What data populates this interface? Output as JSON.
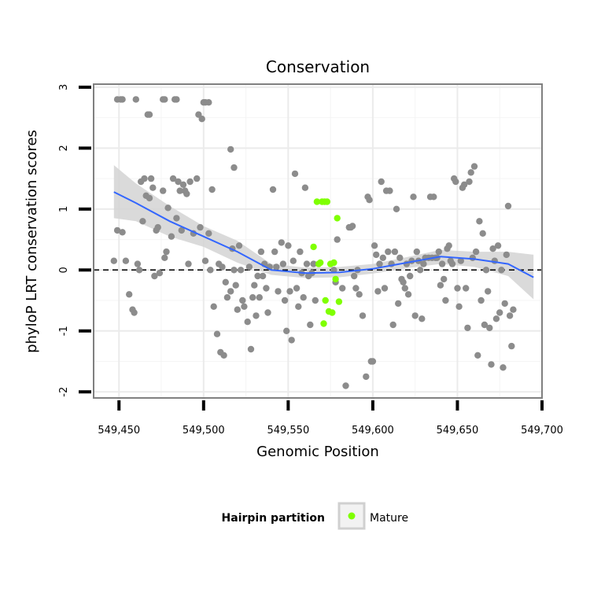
{
  "chart_data": {
    "type": "scatter",
    "title": "Conservation",
    "xlabel": "Genomic Position",
    "ylabel": "phyloP LRT conservation scores",
    "xlim": [
      549435,
      549700
    ],
    "ylim": [
      -2.1,
      3.05
    ],
    "x_ticks": [
      549450,
      549500,
      549550,
      549600,
      549650,
      549700
    ],
    "x_tick_labels": [
      "549,450",
      "549,500",
      "549,550",
      "549,600",
      "549,650",
      "549,700"
    ],
    "y_ticks": [
      -2,
      -1,
      0,
      1,
      2,
      3
    ],
    "y_tick_labels": [
      "-2",
      "-1",
      "0",
      "1",
      "2",
      "3"
    ],
    "reference_line": {
      "y": 0,
      "style": "dashed"
    },
    "grid": true,
    "legend": {
      "title": "Hairpin partition",
      "position": "bottom",
      "entries": [
        {
          "label": "Mature",
          "color": "#7fff00"
        }
      ]
    },
    "colors": {
      "other": "#8c8c8c",
      "mature": "#7fff00",
      "smooth": "#3366ff",
      "ribbon": "#d4d4d4"
    },
    "series": [
      {
        "group": "other",
        "points": [
          [
            549449,
            2.8
          ],
          [
            549451,
            2.8
          ],
          [
            549452,
            2.8
          ],
          [
            549460,
            2.8
          ],
          [
            549467,
            2.55
          ],
          [
            549468,
            2.55
          ],
          [
            549476,
            2.8
          ],
          [
            549477,
            2.8
          ],
          [
            549483,
            2.8
          ],
          [
            549484,
            2.8
          ],
          [
            549497,
            2.55
          ],
          [
            549499,
            2.48
          ],
          [
            549500,
            2.75
          ],
          [
            549501,
            2.75
          ],
          [
            549503,
            2.75
          ],
          [
            549516,
            1.98
          ],
          [
            549518,
            1.68
          ],
          [
            549554,
            1.58
          ],
          [
            549560,
            1.35
          ],
          [
            549449,
            0.65
          ],
          [
            549452,
            0.62
          ],
          [
            549454,
            0.15
          ],
          [
            549447,
            0.15
          ],
          [
            549456,
            -0.4
          ],
          [
            549458,
            -0.65
          ],
          [
            549459,
            -0.7
          ],
          [
            549461,
            0.1
          ],
          [
            549462,
            0.0
          ],
          [
            549463,
            1.45
          ],
          [
            549465,
            1.5
          ],
          [
            549464,
            0.8
          ],
          [
            549466,
            1.22
          ],
          [
            549468,
            1.18
          ],
          [
            549469,
            1.5
          ],
          [
            549470,
            1.35
          ],
          [
            549471,
            -0.1
          ],
          [
            549472,
            0.65
          ],
          [
            549473,
            0.7
          ],
          [
            549474,
            -0.05
          ],
          [
            549476,
            1.3
          ],
          [
            549477,
            0.2
          ],
          [
            549478,
            0.3
          ],
          [
            549479,
            1.02
          ],
          [
            549481,
            0.55
          ],
          [
            549482,
            1.5
          ],
          [
            549484,
            0.85
          ],
          [
            549485,
            1.45
          ],
          [
            549486,
            1.3
          ],
          [
            549487,
            0.65
          ],
          [
            549488,
            1.4
          ],
          [
            549489,
            1.3
          ],
          [
            549490,
            1.25
          ],
          [
            549491,
            0.1
          ],
          [
            549492,
            1.45
          ],
          [
            549494,
            0.6
          ],
          [
            549496,
            1.5
          ],
          [
            549498,
            0.7
          ],
          [
            549501,
            0.15
          ],
          [
            549503,
            0.6
          ],
          [
            549504,
            0.0
          ],
          [
            549505,
            1.32
          ],
          [
            549506,
            -0.6
          ],
          [
            549508,
            -1.05
          ],
          [
            549509,
            0.1
          ],
          [
            549510,
            -1.35
          ],
          [
            549511,
            0.05
          ],
          [
            549512,
            -1.4
          ],
          [
            549513,
            -0.2
          ],
          [
            549514,
            -0.45
          ],
          [
            549516,
            -0.35
          ],
          [
            549517,
            0.35
          ],
          [
            549518,
            0.0
          ],
          [
            549519,
            -0.25
          ],
          [
            549520,
            -0.65
          ],
          [
            549521,
            0.4
          ],
          [
            549522,
            0.0
          ],
          [
            549523,
            -0.5
          ],
          [
            549524,
            -0.6
          ],
          [
            549526,
            -0.85
          ],
          [
            549527,
            0.05
          ],
          [
            549528,
            -1.3
          ],
          [
            549529,
            -0.45
          ],
          [
            549530,
            -0.25
          ],
          [
            549531,
            -0.75
          ],
          [
            549532,
            -0.1
          ],
          [
            549533,
            -0.45
          ],
          [
            549534,
            0.3
          ],
          [
            549535,
            -0.1
          ],
          [
            549536,
            0.1
          ],
          [
            549537,
            -0.3
          ],
          [
            549538,
            -0.7
          ],
          [
            549539,
            0.05
          ],
          [
            549541,
            1.32
          ],
          [
            549542,
            0.3
          ],
          [
            549543,
            0.05
          ],
          [
            549544,
            -0.35
          ],
          [
            549546,
            0.45
          ],
          [
            549547,
            0.1
          ],
          [
            549548,
            -0.5
          ],
          [
            549549,
            -1.0
          ],
          [
            549550,
            0.4
          ],
          [
            549551,
            -0.35
          ],
          [
            549552,
            -1.15
          ],
          [
            549553,
            0.15
          ],
          [
            549555,
            -0.3
          ],
          [
            549556,
            -0.6
          ],
          [
            549557,
            0.3
          ],
          [
            549558,
            -0.05
          ],
          [
            549559,
            -0.45
          ],
          [
            549561,
            0.1
          ],
          [
            549562,
            -0.1
          ],
          [
            549563,
            -0.9
          ],
          [
            549564,
            -0.05
          ],
          [
            549565,
            0.1
          ],
          [
            549566,
            -0.5
          ],
          [
            549577,
            0.0
          ],
          [
            549578,
            -0.2
          ],
          [
            549579,
            0.5
          ],
          [
            549582,
            -0.3
          ],
          [
            549584,
            -1.9
          ],
          [
            549586,
            0.7
          ],
          [
            549587,
            0.7
          ],
          [
            549588,
            0.72
          ],
          [
            549589,
            -0.1
          ],
          [
            549590,
            -0.3
          ],
          [
            549591,
            0.0
          ],
          [
            549592,
            -0.4
          ],
          [
            549594,
            -0.75
          ],
          [
            549596,
            -1.75
          ],
          [
            549597,
            1.2
          ],
          [
            549598,
            1.15
          ],
          [
            549599,
            -1.5
          ],
          [
            549600,
            -1.5
          ],
          [
            549601,
            0.4
          ],
          [
            549602,
            0.25
          ],
          [
            549603,
            -0.35
          ],
          [
            549604,
            0.1
          ],
          [
            549605,
            1.45
          ],
          [
            549606,
            0.2
          ],
          [
            549607,
            -0.3
          ],
          [
            549608,
            1.3
          ],
          [
            549609,
            0.3
          ],
          [
            549610,
            1.3
          ],
          [
            549611,
            0.1
          ],
          [
            549612,
            -0.9
          ],
          [
            549613,
            0.3
          ],
          [
            549614,
            1.0
          ],
          [
            549615,
            -0.55
          ],
          [
            549616,
            0.2
          ],
          [
            549617,
            -0.15
          ],
          [
            549618,
            -0.2
          ],
          [
            549619,
            -0.3
          ],
          [
            549620,
            0.1
          ],
          [
            549621,
            -0.4
          ],
          [
            549622,
            -0.1
          ],
          [
            549623,
            0.15
          ],
          [
            549624,
            1.2
          ],
          [
            549625,
            -0.75
          ],
          [
            549626,
            0.3
          ],
          [
            549627,
            0.15
          ],
          [
            549628,
            0.0
          ],
          [
            549629,
            -0.8
          ],
          [
            549630,
            0.1
          ],
          [
            549631,
            0.2
          ],
          [
            549633,
            0.2
          ],
          [
            549634,
            1.2
          ],
          [
            549635,
            0.2
          ],
          [
            549636,
            1.2
          ],
          [
            549637,
            0.2
          ],
          [
            549638,
            0.2
          ],
          [
            549639,
            0.3
          ],
          [
            549640,
            -0.25
          ],
          [
            549641,
            0.1
          ],
          [
            549642,
            -0.15
          ],
          [
            549643,
            -0.5
          ],
          [
            549644,
            0.35
          ],
          [
            549645,
            0.4
          ],
          [
            549646,
            0.15
          ],
          [
            549647,
            0.1
          ],
          [
            549648,
            1.5
          ],
          [
            549649,
            1.45
          ],
          [
            549650,
            -0.3
          ],
          [
            549651,
            -0.6
          ],
          [
            549652,
            0.15
          ],
          [
            549653,
            1.35
          ],
          [
            549654,
            1.4
          ],
          [
            549655,
            -0.3
          ],
          [
            549656,
            -0.95
          ],
          [
            549657,
            1.45
          ],
          [
            549658,
            1.6
          ],
          [
            549659,
            0.2
          ],
          [
            549660,
            1.7
          ],
          [
            549661,
            0.3
          ],
          [
            549662,
            -1.4
          ],
          [
            549663,
            0.8
          ],
          [
            549664,
            -0.5
          ],
          [
            549665,
            0.6
          ],
          [
            549666,
            -0.9
          ],
          [
            549667,
            0.0
          ],
          [
            549668,
            -0.35
          ],
          [
            549669,
            -0.95
          ],
          [
            549670,
            -1.55
          ],
          [
            549671,
            0.35
          ],
          [
            549672,
            0.15
          ],
          [
            549673,
            -0.8
          ],
          [
            549674,
            0.4
          ],
          [
            549675,
            -0.7
          ],
          [
            549676,
            0.0
          ],
          [
            549677,
            -1.6
          ],
          [
            549678,
            -0.55
          ],
          [
            549679,
            0.25
          ],
          [
            549680,
            1.05
          ],
          [
            549681,
            -0.75
          ],
          [
            549682,
            -1.25
          ],
          [
            549683,
            -0.65
          ]
        ]
      },
      {
        "group": "Mature",
        "points": [
          [
            549565,
            0.38
          ],
          [
            549567,
            1.12
          ],
          [
            549568,
            0.1
          ],
          [
            549569,
            0.12
          ],
          [
            549570,
            1.12
          ],
          [
            549571,
            -0.88
          ],
          [
            549571.5,
            1.12
          ],
          [
            549572,
            -0.5
          ],
          [
            549573,
            1.12
          ],
          [
            549574,
            -0.68
          ],
          [
            549575,
            0.1
          ],
          [
            549576,
            -0.7
          ],
          [
            549577,
            0.12
          ],
          [
            549578,
            -0.15
          ],
          [
            549579,
            0.85
          ],
          [
            549580,
            -0.52
          ]
        ]
      }
    ],
    "smooth": {
      "x": [
        549447,
        549460,
        549480,
        549500,
        549520,
        549540,
        549560,
        549580,
        549600,
        549620,
        549640,
        549660,
        549680,
        549695
      ],
      "y": [
        1.28,
        1.1,
        0.8,
        0.55,
        0.3,
        0.0,
        -0.05,
        -0.04,
        0.02,
        0.12,
        0.22,
        0.18,
        0.1,
        -0.12
      ],
      "lower": [
        0.85,
        0.8,
        0.55,
        0.38,
        0.12,
        -0.08,
        -0.13,
        -0.12,
        -0.06,
        0.03,
        0.1,
        0.05,
        -0.1,
        -0.48
      ],
      "upper": [
        1.72,
        1.42,
        1.05,
        0.72,
        0.48,
        0.1,
        0.04,
        0.05,
        0.1,
        0.21,
        0.33,
        0.3,
        0.3,
        0.25
      ]
    }
  }
}
